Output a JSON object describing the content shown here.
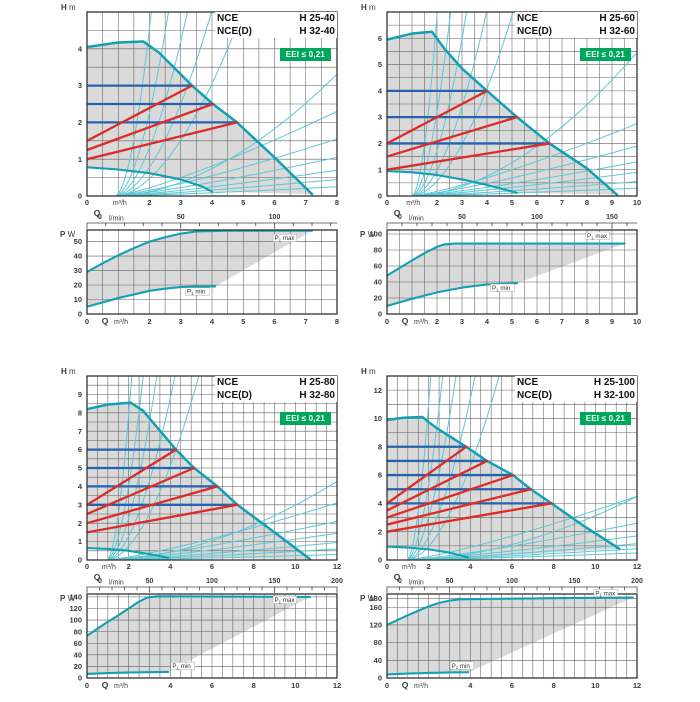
{
  "labels": {
    "head": "H",
    "head_unit": "m",
    "power": "P",
    "power_unit": "W",
    "flow": "Q",
    "flow_unit": "m³/h",
    "flow_unit_lmin": "l/min"
  },
  "colors": {
    "teal_thick": "#12A0B4",
    "teal_thin": "#5BC8D6",
    "blue": "#2563AE",
    "red": "#DD2B27",
    "fill": "#DADADA",
    "grid": "#606060",
    "frame": "#333333",
    "badge_green": "#00A65A",
    "label": "#3A3A3A"
  },
  "chart_data": [
    {
      "id": "h-25-40",
      "models": [
        {
          "name": "NCE",
          "size": "H 25-40"
        },
        {
          "name": "NCE(D)",
          "size": "H 32-40"
        }
      ],
      "badge": "EEI ≤ 0,21",
      "hq": {
        "type": "line",
        "ymax": 5,
        "ygrid": 0.5,
        "yticks": [
          0,
          1,
          2,
          3,
          4
        ],
        "xmax": 8,
        "xgrid": 0.5,
        "xticks": [
          2,
          3,
          4,
          5,
          6,
          7,
          8
        ],
        "lmin_labels": [
          0,
          50,
          100
        ],
        "lmin_tick_max": 130,
        "envelope_top": [
          [
            0,
            4.05
          ],
          [
            1,
            4.17
          ],
          [
            1.8,
            4.2
          ],
          [
            2.3,
            3.9
          ],
          [
            3.36,
            3.0
          ],
          [
            4.03,
            2.5
          ],
          [
            4.8,
            2.0
          ],
          [
            6,
            1.05
          ],
          [
            7.2,
            0.05
          ]
        ],
        "min_curve": [
          [
            0,
            0.78
          ],
          [
            1,
            0.72
          ],
          [
            2,
            0.62
          ],
          [
            3,
            0.45
          ],
          [
            3.7,
            0.25
          ],
          [
            4.0,
            0.12
          ]
        ],
        "const_pressure_lines": [
          {
            "h": 3.0,
            "q_end": 3.36
          },
          {
            "h": 2.5,
            "q_end": 4.03
          },
          {
            "h": 2.0,
            "q_end": 4.8
          }
        ],
        "prop_pressure_lines": [
          {
            "h0": 1.5,
            "h1": 3.0,
            "q1": 3.36
          },
          {
            "h0": 1.25,
            "h1": 2.5,
            "q1": 4.03
          },
          {
            "h0": 1.0,
            "h1": 2.0,
            "q1": 4.8
          }
        ],
        "curve_origin_q": 0.9,
        "rising_curves_qtop": [
          1.95,
          2.45,
          3.0,
          3.7,
          4.6,
          9.0
        ],
        "fan_curve_end_heights": [
          2.3,
          1.55,
          1.05,
          0.7,
          0.45,
          0.25
        ]
      },
      "pq": {
        "type": "line",
        "ymax": 58,
        "yticks": [
          0,
          10,
          20,
          30,
          40,
          50
        ],
        "p_max_label": "P1 max",
        "p_min_label": "P1 min",
        "p_max": [
          [
            0,
            29
          ],
          [
            0.5,
            35
          ],
          [
            1,
            40.5
          ],
          [
            1.5,
            45.5
          ],
          [
            2,
            50
          ],
          [
            2.5,
            53
          ],
          [
            3,
            55.5
          ],
          [
            3.5,
            57
          ],
          [
            4.5,
            57.5
          ],
          [
            7.2,
            57.5
          ]
        ],
        "p_min": [
          [
            0,
            5
          ],
          [
            0.5,
            8
          ],
          [
            1,
            11
          ],
          [
            1.5,
            13.5
          ],
          [
            2,
            16
          ],
          [
            2.5,
            17.5
          ],
          [
            3,
            18.6
          ],
          [
            3.5,
            19
          ],
          [
            4.1,
            19
          ]
        ],
        "label_pos_max": [
          6.0,
          51
        ],
        "label_pos_min": [
          3.2,
          14
        ]
      }
    },
    {
      "id": "h-25-60",
      "models": [
        {
          "name": "NCE",
          "size": "H 25-60"
        },
        {
          "name": "NCE(D)",
          "size": "H 32-60"
        }
      ],
      "badge": "EEI ≤ 0,21",
      "hq": {
        "type": "line",
        "ymax": 7,
        "ygrid": 0.5,
        "yticks": [
          0,
          1,
          2,
          3,
          4,
          5,
          6
        ],
        "xmax": 10,
        "xgrid": 0.5,
        "xticks": [
          2,
          3,
          4,
          5,
          6,
          7,
          8,
          9,
          10
        ],
        "lmin_labels": [
          0,
          50,
          100,
          150
        ],
        "lmin_tick_max": 160,
        "envelope_top": [
          [
            0,
            5.95
          ],
          [
            1,
            6.18
          ],
          [
            1.8,
            6.25
          ],
          [
            2.3,
            5.6
          ],
          [
            3,
            4.85
          ],
          [
            4,
            4.0
          ],
          [
            5.2,
            3.0
          ],
          [
            6.5,
            2.0
          ],
          [
            8,
            1.05
          ],
          [
            9.2,
            0.05
          ]
        ],
        "min_curve": [
          [
            0,
            0.95
          ],
          [
            1,
            0.9
          ],
          [
            2,
            0.8
          ],
          [
            3,
            0.63
          ],
          [
            4,
            0.42
          ],
          [
            5.2,
            0.12
          ]
        ],
        "const_pressure_lines": [
          {
            "h": 4.0,
            "q_end": 4.0
          },
          {
            "h": 3.0,
            "q_end": 5.2
          },
          {
            "h": 2.0,
            "q_end": 6.5
          }
        ],
        "prop_pressure_lines": [
          {
            "h0": 2.0,
            "h1": 4.0,
            "q1": 4.0
          },
          {
            "h0": 1.5,
            "h1": 3.0,
            "q1": 5.2
          },
          {
            "h0": 1.0,
            "h1": 2.0,
            "q1": 6.5
          }
        ],
        "curve_origin_q": 1.0,
        "rising_curves_qtop": [
          1.95,
          2.45,
          3.05,
          3.8,
          4.8,
          10.7
        ],
        "fan_curve_end_heights": [
          2.75,
          1.9,
          1.3,
          0.9,
          0.55,
          0.3
        ]
      },
      "pq": {
        "type": "line",
        "ymax": 105,
        "yticks": [
          0,
          20,
          40,
          60,
          80,
          100
        ],
        "p_max_label": "P1 max",
        "p_min_label": "P1 min",
        "p_max": [
          [
            0,
            48
          ],
          [
            0.5,
            57.5
          ],
          [
            1,
            67
          ],
          [
            1.5,
            76
          ],
          [
            2,
            84
          ],
          [
            2.3,
            87
          ],
          [
            2.7,
            88
          ],
          [
            9.5,
            88
          ]
        ],
        "p_min": [
          [
            0,
            10
          ],
          [
            1,
            19
          ],
          [
            2,
            27
          ],
          [
            3,
            33
          ],
          [
            4,
            37
          ],
          [
            5.2,
            38.5
          ]
        ],
        "label_pos_max": [
          8.0,
          95
        ],
        "label_pos_min": [
          4.2,
          30
        ]
      }
    },
    {
      "id": "h-25-80",
      "models": [
        {
          "name": "NCE",
          "size": "H 25-80"
        },
        {
          "name": "NCE(D)",
          "size": "H 32-80"
        }
      ],
      "badge": "EEI ≤ 0,21",
      "hq": {
        "type": "line",
        "ymax": 10,
        "ygrid": 0.5,
        "yticks": [
          0,
          1,
          2,
          3,
          4,
          5,
          6,
          7,
          8,
          9
        ],
        "xmax": 12,
        "xgrid": 0.5,
        "xticks": [
          2,
          4,
          6,
          8,
          10,
          12
        ],
        "lmin_labels": [
          0,
          50,
          100,
          150,
          200
        ],
        "lmin_tick_max": 200,
        "envelope_top": [
          [
            0,
            8.2
          ],
          [
            1,
            8.45
          ],
          [
            2.1,
            8.55
          ],
          [
            2.7,
            8.1
          ],
          [
            4.27,
            6.0
          ],
          [
            5.14,
            5.0
          ],
          [
            6.26,
            4.0
          ],
          [
            7.22,
            3.0
          ],
          [
            9,
            1.5
          ],
          [
            10.7,
            0.05
          ]
        ],
        "min_curve": [
          [
            0,
            0.65
          ],
          [
            1,
            0.6
          ],
          [
            2,
            0.5
          ],
          [
            3,
            0.32
          ],
          [
            3.9,
            0.12
          ]
        ],
        "const_pressure_lines": [
          {
            "h": 6.0,
            "q_end": 4.27
          },
          {
            "h": 5.0,
            "q_end": 5.14
          },
          {
            "h": 4.0,
            "q_end": 6.26
          },
          {
            "h": 3.0,
            "q_end": 7.22
          }
        ],
        "prop_pressure_lines": [
          {
            "h0": 3.0,
            "h1": 6.0,
            "q1": 4.27
          },
          {
            "h0": 2.5,
            "h1": 5.0,
            "q1": 5.14
          },
          {
            "h0": 2.0,
            "h1": 4.0,
            "q1": 6.26
          },
          {
            "h0": 1.5,
            "h1": 3.0,
            "q1": 7.22
          }
        ],
        "curve_origin_q": 0.95,
        "rising_curves_qtop": [
          2.05,
          2.55,
          3.15,
          3.95,
          5.0,
          17.2
        ],
        "fan_curve_end_heights": [
          3.1,
          2.1,
          1.45,
          0.95,
          0.6,
          0.3
        ]
      },
      "pq": {
        "type": "line",
        "ymax": 145,
        "yticks": [
          0,
          20,
          40,
          60,
          80,
          100,
          120,
          140
        ],
        "p_max_label": "P1 max",
        "p_min_label": "P1 min",
        "p_max": [
          [
            0,
            73
          ],
          [
            0.5,
            85
          ],
          [
            1,
            97
          ],
          [
            1.5,
            108
          ],
          [
            2,
            120
          ],
          [
            2.5,
            132
          ],
          [
            2.9,
            139
          ],
          [
            3.4,
            141
          ],
          [
            10.7,
            140
          ]
        ],
        "p_min": [
          [
            0,
            7
          ],
          [
            1,
            8.5
          ],
          [
            2,
            9.5
          ],
          [
            3,
            10
          ],
          [
            3.9,
            10.5
          ]
        ],
        "label_pos_max": [
          9.0,
          131
        ],
        "label_pos_min": [
          4.1,
          17
        ]
      }
    },
    {
      "id": "h-25-100",
      "models": [
        {
          "name": "NCE",
          "size": "H 25-100"
        },
        {
          "name": "NCE(D)",
          "size": "H 32-100"
        }
      ],
      "badge": "EEI ≤ 0,21",
      "hq": {
        "type": "line",
        "ymax": 13,
        "ygrid": 1,
        "yticks": [
          0,
          2,
          4,
          6,
          8,
          10,
          12
        ],
        "xmax": 12,
        "xgrid": 0.5,
        "xticks": [
          2,
          4,
          6,
          8,
          10,
          12
        ],
        "lmin_labels": [
          0,
          50,
          100,
          150,
          200
        ],
        "lmin_tick_max": 200,
        "envelope_top": [
          [
            0,
            9.9
          ],
          [
            0.8,
            10.05
          ],
          [
            1.7,
            10.1
          ],
          [
            2.3,
            9.4
          ],
          [
            3.8,
            8.0
          ],
          [
            4.8,
            7.0
          ],
          [
            6.05,
            6.0
          ],
          [
            6.9,
            5.0
          ],
          [
            7.9,
            4.0
          ],
          [
            9.5,
            2.35
          ],
          [
            11.15,
            0.8
          ]
        ],
        "min_curve": [
          [
            0,
            0.95
          ],
          [
            1,
            0.88
          ],
          [
            2,
            0.75
          ],
          [
            3,
            0.52
          ],
          [
            3.9,
            0.18
          ]
        ],
        "const_pressure_lines": [
          {
            "h": 8.0,
            "q_end": 3.8
          },
          {
            "h": 7.0,
            "q_end": 4.8
          },
          {
            "h": 6.0,
            "q_end": 6.05
          },
          {
            "h": 5.0,
            "q_end": 6.9
          },
          {
            "h": 4.0,
            "q_end": 7.9
          }
        ],
        "prop_pressure_lines": [
          {
            "h0": 4.0,
            "h1": 8.0,
            "q1": 3.8
          },
          {
            "h0": 3.5,
            "h1": 7.0,
            "q1": 4.8
          },
          {
            "h0": 3.0,
            "h1": 6.0,
            "q1": 6.05
          },
          {
            "h0": 2.5,
            "h1": 5.0,
            "q1": 6.9
          },
          {
            "h0": 2.0,
            "h1": 4.0,
            "q1": 7.9
          }
        ],
        "curve_origin_q": 0.95,
        "rising_curves_qtop": [
          1.95,
          2.45,
          3.0,
          3.8,
          4.8,
          18.3
        ],
        "fan_curve_end_heights": [
          4.5,
          2.6,
          1.7,
          1.15,
          0.8,
          0.5
        ]
      },
      "pq": {
        "type": "line",
        "ymax": 190,
        "yticks": [
          0,
          40,
          80,
          120,
          160,
          180
        ],
        "p_max_label": "P1 max",
        "p_min_label": "P1 min",
        "p_max": [
          [
            0,
            120
          ],
          [
            0.5,
            131
          ],
          [
            1,
            142
          ],
          [
            1.5,
            152
          ],
          [
            2,
            162
          ],
          [
            2.5,
            170
          ],
          [
            3,
            175
          ],
          [
            3.5,
            178
          ],
          [
            5,
            179
          ],
          [
            7,
            180
          ],
          [
            9,
            181
          ],
          [
            11.8,
            182
          ]
        ],
        "p_min": [
          [
            0,
            8
          ],
          [
            1,
            10
          ],
          [
            2,
            11.5
          ],
          [
            3,
            12.5
          ],
          [
            3.9,
            13
          ]
        ],
        "label_pos_max": [
          10.0,
          187
        ],
        "label_pos_min": [
          3.1,
          23
        ]
      }
    }
  ]
}
